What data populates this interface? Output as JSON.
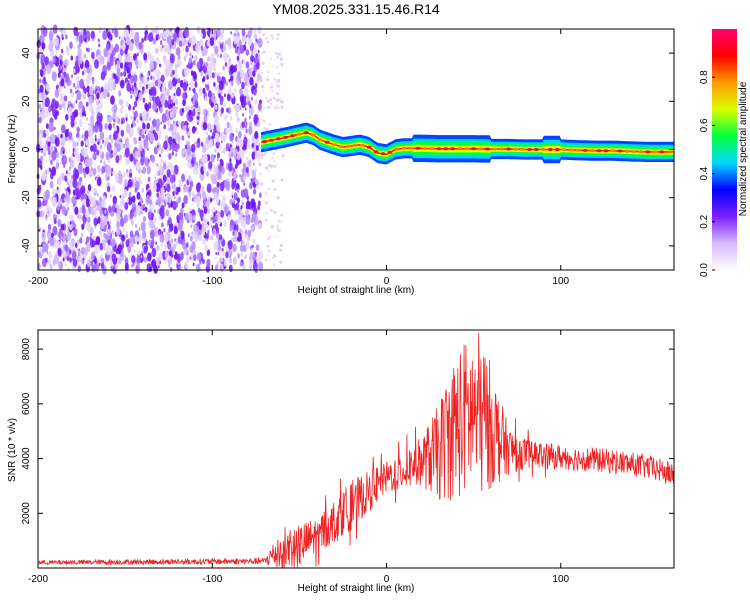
{
  "title": "YM08.2025.331.15.46.R14",
  "chart_data": [
    {
      "type": "heatmap",
      "name": "spectrogram",
      "xlabel": "Height of straight line (km)",
      "ylabel": "Frequency (Hz)",
      "xlim": [
        -200,
        165
      ],
      "ylim": [
        -50,
        50
      ],
      "xticks": [
        "-200",
        "-100",
        "0",
        "100"
      ],
      "xtick_values": [
        -200,
        -100,
        0,
        100
      ],
      "yticks": [
        "-40",
        "-20",
        "0",
        "20",
        "40"
      ],
      "ytick_values": [
        -40,
        -20,
        0,
        20,
        40
      ],
      "noise_region_x": [
        -200,
        -72
      ],
      "signal_region_x": [
        -72,
        165
      ],
      "signal_trace": {
        "x": [
          -72,
          -65,
          -58,
          -52,
          -46,
          -42,
          -38,
          -34,
          -30,
          -25,
          -20,
          -15,
          -10,
          -5,
          0,
          5,
          10,
          20,
          30,
          40,
          50,
          60,
          70,
          80,
          90,
          100,
          110,
          120,
          130,
          140,
          150,
          160,
          165
        ],
        "freq": [
          3,
          4,
          5,
          6,
          7,
          6,
          4,
          3,
          2,
          1,
          1.5,
          2,
          1,
          -1.5,
          -2,
          0,
          0.5,
          0.5,
          0.3,
          0.3,
          0.3,
          0.2,
          0.2,
          0,
          0,
          0,
          -0.3,
          -0.5,
          -0.5,
          -0.8,
          -1,
          -1,
          -1
        ]
      },
      "colorbar": {
        "label": "Normalized spectral amplitude",
        "range": [
          0,
          1
        ],
        "ticks": [
          "0.0",
          "0.2",
          "0.4",
          "0.6",
          "0.8"
        ],
        "tick_values": [
          0,
          0.2,
          0.4,
          0.6,
          0.8
        ],
        "colors": [
          "#ffffff",
          "#d6b8ff",
          "#7a1fff",
          "#0000ff",
          "#00d8ff",
          "#00ff3c",
          "#dcff00",
          "#ff9a00",
          "#ff0000",
          "#ff0070"
        ]
      }
    },
    {
      "type": "line",
      "name": "snr",
      "xlabel": "Height of straight line (km)",
      "ylabel": "SNR (10 * v/v)",
      "xlim": [
        -200,
        165
      ],
      "ylim": [
        0,
        8700
      ],
      "xticks": [
        "-200",
        "-100",
        "0",
        "100"
      ],
      "xtick_values": [
        -200,
        -100,
        0,
        100
      ],
      "yticks": [
        "2000",
        "4000",
        "6000",
        "8000"
      ],
      "ytick_values": [
        2000,
        4000,
        6000,
        8000
      ],
      "color": "#ee2222",
      "envelope": {
        "x": [
          -200,
          -70,
          -60,
          -50,
          -40,
          -30,
          -20,
          -10,
          0,
          10,
          20,
          30,
          35,
          40,
          45,
          50,
          55,
          60,
          65,
          70,
          80,
          90,
          100,
          110,
          120,
          130,
          140,
          150,
          160,
          165
        ],
        "y": [
          200,
          250,
          700,
          800,
          1200,
          1700,
          2300,
          2800,
          3300,
          3600,
          3900,
          4200,
          4800,
          5200,
          5500,
          5600,
          5500,
          5200,
          4700,
          4300,
          4200,
          4100,
          4050,
          4000,
          3950,
          3900,
          3800,
          3700,
          3500,
          3400
        ]
      },
      "amplitude": {
        "x": [
          -200,
          -70,
          -60,
          -40,
          -20,
          0,
          20,
          30,
          40,
          55,
          70,
          80,
          100,
          165
        ],
        "y": [
          80,
          120,
          900,
          700,
          900,
          600,
          900,
          1800,
          2800,
          3000,
          900,
          550,
          450,
          450
        ]
      },
      "peak": {
        "x": 53,
        "y": 8600
      }
    }
  ]
}
